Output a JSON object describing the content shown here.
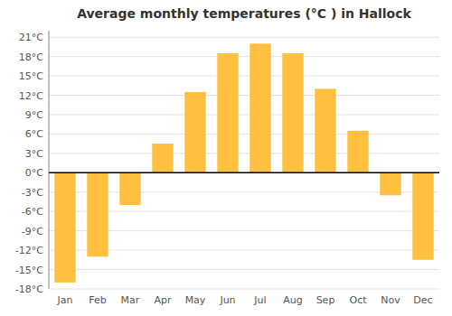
{
  "chart_data": {
    "type": "bar",
    "title": "Average monthly temperatures (°C ) in Hallock",
    "categories": [
      "Jan",
      "Feb",
      "Mar",
      "Apr",
      "May",
      "Jun",
      "Jul",
      "Aug",
      "Sep",
      "Oct",
      "Nov",
      "Dec"
    ],
    "values": [
      -17,
      -13,
      -5,
      4.5,
      12.5,
      18.5,
      20,
      18.5,
      13,
      6.5,
      -3.5,
      -13.5
    ],
    "color": "#FFC040",
    "ylim": [
      -18,
      22
    ],
    "yticks": [
      {
        "value": -18,
        "label": "-18°C"
      },
      {
        "value": -15,
        "label": "-15°C"
      },
      {
        "value": -12,
        "label": "-12°C"
      },
      {
        "value": -9,
        "label": "-9°C"
      },
      {
        "value": -6,
        "label": "-6°C"
      },
      {
        "value": -3,
        "label": "-3°C"
      },
      {
        "value": 0,
        "label": "0°C"
      },
      {
        "value": 3,
        "label": "3°C"
      },
      {
        "value": 6,
        "label": "6°C"
      },
      {
        "value": 9,
        "label": "9°C"
      },
      {
        "value": 12,
        "label": "12°C"
      },
      {
        "value": 15,
        "label": "15°C"
      },
      {
        "value": 18,
        "label": "18°C"
      },
      {
        "value": 21,
        "label": "21°C"
      }
    ],
    "grid": true
  }
}
